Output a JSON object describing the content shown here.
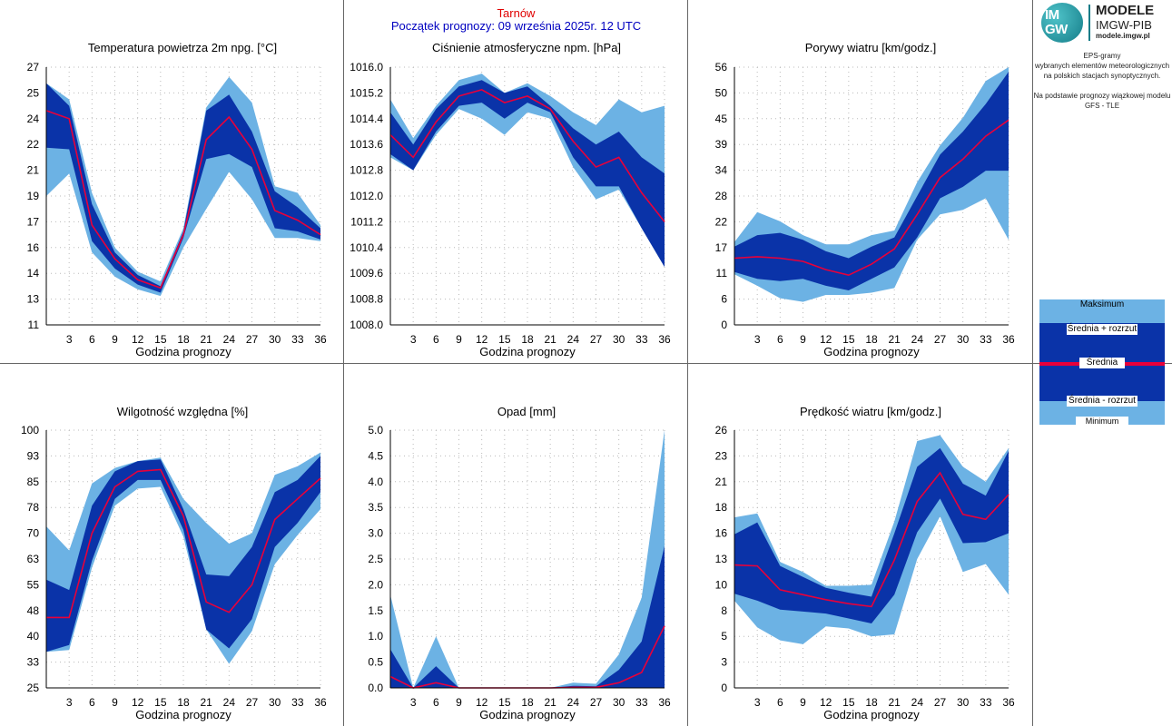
{
  "header": {
    "station": "Tarnów",
    "forecast_start": "Początek prognozy: 09 września 2025r. 12 UTC"
  },
  "brand": {
    "logo_text_top": "IM",
    "logo_text_bottom": "GW",
    "line1": "MODELE",
    "line2": "IMGW-PIB",
    "line3": "modele.imgw.pl"
  },
  "side_text": {
    "l1": "EPS-gramy",
    "l2": "wybranych elementów meteorologicznych",
    "l3": "na polskich stacjach  synoptycznych.",
    "l4": "Na podstawie prognozy wiązkowej modelu",
    "l5": "GFS - TLE"
  },
  "legend": {
    "max": "Maksimum",
    "mean_plus": "Średnia + rozrzut",
    "mean": "Średnia",
    "mean_minus": "Średnia - rozrzut",
    "min": "Minimum"
  },
  "colors": {
    "light_band": "#6cb2e4",
    "dark_band": "#0a33a8",
    "mean_line": "#e8003a",
    "grid": "#bbbbbb"
  },
  "chart_data": [
    {
      "type": "area",
      "title": "Temperatura powietrza 2m npg. [°C]",
      "xlabel": "Godzina prognozy",
      "x": [
        0,
        3,
        6,
        9,
        12,
        15,
        18,
        21,
        24,
        27,
        30,
        33,
        36
      ],
      "x_ticks": [
        "3",
        "6",
        "9",
        "12",
        "15",
        "18",
        "21",
        "24",
        "27",
        "30",
        "33",
        "36"
      ],
      "y_ticks": [
        "11",
        "13",
        "14",
        "16",
        "17",
        "19",
        "21",
        "22",
        "24",
        "25",
        "27"
      ],
      "ylim": [
        11,
        27
      ],
      "series": [
        {
          "name": "Maksimum",
          "values": [
            26.0,
            25.0,
            19.2,
            15.8,
            14.3,
            13.7,
            17.0,
            24.5,
            26.4,
            24.8,
            19.6,
            19.2,
            17.2
          ]
        },
        {
          "name": "Średnia + rozrzut",
          "values": [
            26.0,
            24.6,
            18.5,
            15.5,
            14.1,
            13.4,
            16.8,
            24.3,
            25.3,
            23.0,
            19.3,
            18.3,
            17.0
          ]
        },
        {
          "name": "Średnia",
          "values": [
            24.3,
            23.8,
            17.2,
            15.1,
            13.8,
            13.3,
            16.6,
            22.5,
            23.9,
            21.9,
            18.1,
            17.5,
            16.6
          ]
        },
        {
          "name": "Średnia - rozrzut",
          "values": [
            22.0,
            21.9,
            16.2,
            14.5,
            13.5,
            13.0,
            16.4,
            21.3,
            21.6,
            20.8,
            17.0,
            16.8,
            16.3
          ]
        },
        {
          "name": "Minimum",
          "values": [
            19.0,
            20.4,
            15.5,
            14.0,
            13.2,
            12.8,
            15.8,
            18.2,
            20.5,
            18.8,
            16.4,
            16.4,
            16.2
          ]
        }
      ]
    },
    {
      "type": "area",
      "title": "Ciśnienie atmosferyczne npm. [hPa]",
      "xlabel": "Godzina prognozy",
      "x": [
        0,
        3,
        6,
        9,
        12,
        15,
        18,
        21,
        24,
        27,
        30,
        33,
        36
      ],
      "x_ticks": [
        "3",
        "6",
        "9",
        "12",
        "15",
        "18",
        "21",
        "24",
        "27",
        "30",
        "33",
        "36"
      ],
      "y_ticks": [
        "1008.0",
        "1008.8",
        "1009.6",
        "1010.4",
        "1011.2",
        "1012.0",
        "1012.8",
        "1013.6",
        "1014.4",
        "1015.2",
        "1016.0"
      ],
      "ylim": [
        1008.0,
        1016.0
      ],
      "series": [
        {
          "name": "Maksimum",
          "values": [
            1015.0,
            1013.8,
            1014.8,
            1015.6,
            1015.8,
            1015.2,
            1015.5,
            1015.1,
            1014.6,
            1014.2,
            1015.0,
            1014.6,
            1014.8
          ]
        },
        {
          "name": "Średnia + rozrzut",
          "values": [
            1014.6,
            1013.6,
            1014.7,
            1015.4,
            1015.6,
            1015.2,
            1015.4,
            1014.8,
            1014.1,
            1013.6,
            1014.0,
            1013.2,
            1012.7
          ]
        },
        {
          "name": "Średnia",
          "values": [
            1013.9,
            1013.2,
            1014.3,
            1015.1,
            1015.3,
            1014.9,
            1015.1,
            1014.7,
            1013.7,
            1012.9,
            1013.2,
            1012.1,
            1011.2
          ]
        },
        {
          "name": "Średnia - rozrzut",
          "values": [
            1013.3,
            1012.8,
            1014.0,
            1014.8,
            1014.9,
            1014.4,
            1014.9,
            1014.6,
            1013.2,
            1012.3,
            1012.3,
            1011.0,
            1009.8
          ]
        },
        {
          "name": "Minimum",
          "values": [
            1013.2,
            1012.8,
            1013.9,
            1014.7,
            1014.4,
            1013.9,
            1014.6,
            1014.4,
            1012.9,
            1011.9,
            1012.2,
            1011.0,
            1009.8
          ]
        }
      ]
    },
    {
      "type": "area",
      "title": "Porywy wiatru [km/godz.]",
      "xlabel": "Godzina prognozy",
      "x": [
        0,
        3,
        6,
        9,
        12,
        15,
        18,
        21,
        24,
        27,
        30,
        33,
        36
      ],
      "x_ticks": [
        "3",
        "6",
        "9",
        "12",
        "15",
        "18",
        "21",
        "24",
        "27",
        "30",
        "33",
        "36"
      ],
      "y_ticks": [
        "0",
        "6",
        "11",
        "17",
        "22",
        "28",
        "34",
        "39",
        "45",
        "50",
        "56"
      ],
      "ylim": [
        0,
        56
      ],
      "series": [
        {
          "name": "Maksimum",
          "values": [
            18,
            24.5,
            22.5,
            19.5,
            17.5,
            17.5,
            19.5,
            20.5,
            31,
            39,
            45,
            53,
            56
          ]
        },
        {
          "name": "Średnia + rozrzut",
          "values": [
            17,
            19.5,
            20,
            18.5,
            16,
            14.5,
            17,
            19,
            28,
            37,
            42,
            48,
            55
          ]
        },
        {
          "name": "Średnia",
          "values": [
            14.5,
            14.8,
            14.5,
            13.8,
            12,
            10.8,
            13.2,
            16.5,
            24,
            32,
            36,
            41,
            44.5
          ]
        },
        {
          "name": "Średnia - rozrzut",
          "values": [
            11.5,
            10,
            9.5,
            10,
            8.5,
            7.5,
            10,
            12.5,
            19,
            27.5,
            30,
            33.5,
            33.5
          ]
        },
        {
          "name": "Minimum",
          "values": [
            11,
            8.5,
            5.8,
            5,
            6.5,
            6.5,
            7,
            8,
            18.5,
            24,
            25,
            27.5,
            18.5
          ]
        }
      ]
    },
    {
      "type": "area",
      "title": "Wilgotność względna [%]",
      "xlabel": "Godzina prognozy",
      "x": [
        0,
        3,
        6,
        9,
        12,
        15,
        18,
        21,
        24,
        27,
        30,
        33,
        36
      ],
      "x_ticks": [
        "3",
        "6",
        "9",
        "12",
        "15",
        "18",
        "21",
        "24",
        "27",
        "30",
        "33",
        "36"
      ],
      "y_ticks": [
        "25",
        "33",
        "40",
        "48",
        "55",
        "63",
        "70",
        "78",
        "85",
        "93",
        "100"
      ],
      "ylim": [
        25,
        100
      ],
      "series": [
        {
          "name": "Maksimum",
          "values": [
            72,
            65,
            84.5,
            89,
            91,
            92,
            80,
            73,
            67,
            70,
            87,
            89.5,
            93.5
          ]
        },
        {
          "name": "Średnia + rozrzut",
          "values": [
            56.5,
            53.5,
            78,
            88,
            91,
            91.5,
            77,
            58,
            57.5,
            66,
            82,
            85.5,
            92.5
          ]
        },
        {
          "name": "Średnia",
          "values": [
            45.5,
            45.5,
            70,
            83.5,
            88,
            88.5,
            75,
            50,
            47,
            55,
            74,
            80,
            86
          ]
        },
        {
          "name": "Średnia - rozrzut",
          "values": [
            35.5,
            37.5,
            62,
            80,
            85.5,
            85.5,
            71,
            42,
            36.5,
            45,
            66,
            73,
            82
          ]
        },
        {
          "name": "Minimum",
          "values": [
            35.5,
            36,
            60,
            78,
            83,
            83.5,
            69,
            42,
            32,
            41.5,
            61,
            69.5,
            77
          ]
        }
      ]
    },
    {
      "type": "area",
      "title": "Opad [mm]",
      "xlabel": "Godzina prognozy",
      "x": [
        0,
        3,
        6,
        9,
        12,
        15,
        18,
        21,
        24,
        27,
        30,
        33,
        36
      ],
      "x_ticks": [
        "3",
        "6",
        "9",
        "12",
        "15",
        "18",
        "21",
        "24",
        "27",
        "30",
        "33",
        "36"
      ],
      "y_ticks": [
        "0.0",
        "0.5",
        "1.0",
        "1.5",
        "2.0",
        "2.5",
        "3.0",
        "3.5",
        "4.0",
        "4.5",
        "5.0"
      ],
      "ylim": [
        0,
        5
      ],
      "series": [
        {
          "name": "Maksimum",
          "values": [
            1.8,
            0,
            1.0,
            0,
            0,
            0,
            0,
            0,
            0.1,
            0.08,
            0.65,
            1.75,
            5.0
          ]
        },
        {
          "name": "Średnia + rozrzut",
          "values": [
            0.75,
            0,
            0.42,
            0,
            0,
            0,
            0,
            0,
            0.04,
            0.03,
            0.35,
            0.9,
            2.75
          ]
        },
        {
          "name": "Średnia",
          "values": [
            0.22,
            0,
            0.1,
            0,
            0,
            0,
            0,
            0,
            0.01,
            0.01,
            0.1,
            0.3,
            1.2
          ]
        },
        {
          "name": "Średnia - rozrzut",
          "values": [
            0,
            0,
            0,
            0,
            0,
            0,
            0,
            0,
            0,
            0,
            0,
            0,
            0
          ]
        },
        {
          "name": "Minimum",
          "values": [
            0,
            0,
            0,
            0,
            0,
            0,
            0,
            0,
            0,
            0,
            0,
            0,
            0
          ]
        }
      ]
    },
    {
      "type": "area",
      "title": "Prędkość wiatru [km/godz.]",
      "xlabel": "Godzina prognozy",
      "x": [
        0,
        3,
        6,
        9,
        12,
        15,
        18,
        21,
        24,
        27,
        30,
        33,
        36
      ],
      "x_ticks": [
        "3",
        "6",
        "9",
        "12",
        "15",
        "18",
        "21",
        "24",
        "27",
        "30",
        "33",
        "36"
      ],
      "y_ticks": [
        "0",
        "3",
        "5",
        "8",
        "10",
        "13",
        "16",
        "18",
        "21",
        "23",
        "26"
      ],
      "ylim": [
        0,
        26
      ],
      "series": [
        {
          "name": "Maksimum",
          "values": [
            17.2,
            17.6,
            12.7,
            11.7,
            10.3,
            10.3,
            10.4,
            16.8,
            24.9,
            25.5,
            22.3,
            20.8,
            24.2
          ]
        },
        {
          "name": "Średnia + rozrzut",
          "values": [
            15.5,
            16.7,
            12.3,
            11.2,
            10.1,
            9.6,
            9.2,
            15.6,
            22.3,
            24.2,
            20.6,
            19.4,
            23.9
          ]
        },
        {
          "name": "Średnia",
          "values": [
            12.4,
            12.3,
            9.9,
            9.4,
            8.9,
            8.5,
            8.2,
            12.9,
            18.8,
            21.7,
            17.5,
            17.0,
            19.5
          ]
        },
        {
          "name": "Średnia - rozrzut",
          "values": [
            9.5,
            8.8,
            7.9,
            7.7,
            7.5,
            7.0,
            6.5,
            9.4,
            15.7,
            19.1,
            14.6,
            14.7,
            15.6
          ]
        },
        {
          "name": "Minimum",
          "values": [
            8.8,
            6.1,
            4.8,
            4.4,
            6.2,
            6.0,
            5.2,
            5.4,
            13.0,
            17.3,
            11.7,
            12.5,
            9.4
          ]
        }
      ]
    }
  ]
}
